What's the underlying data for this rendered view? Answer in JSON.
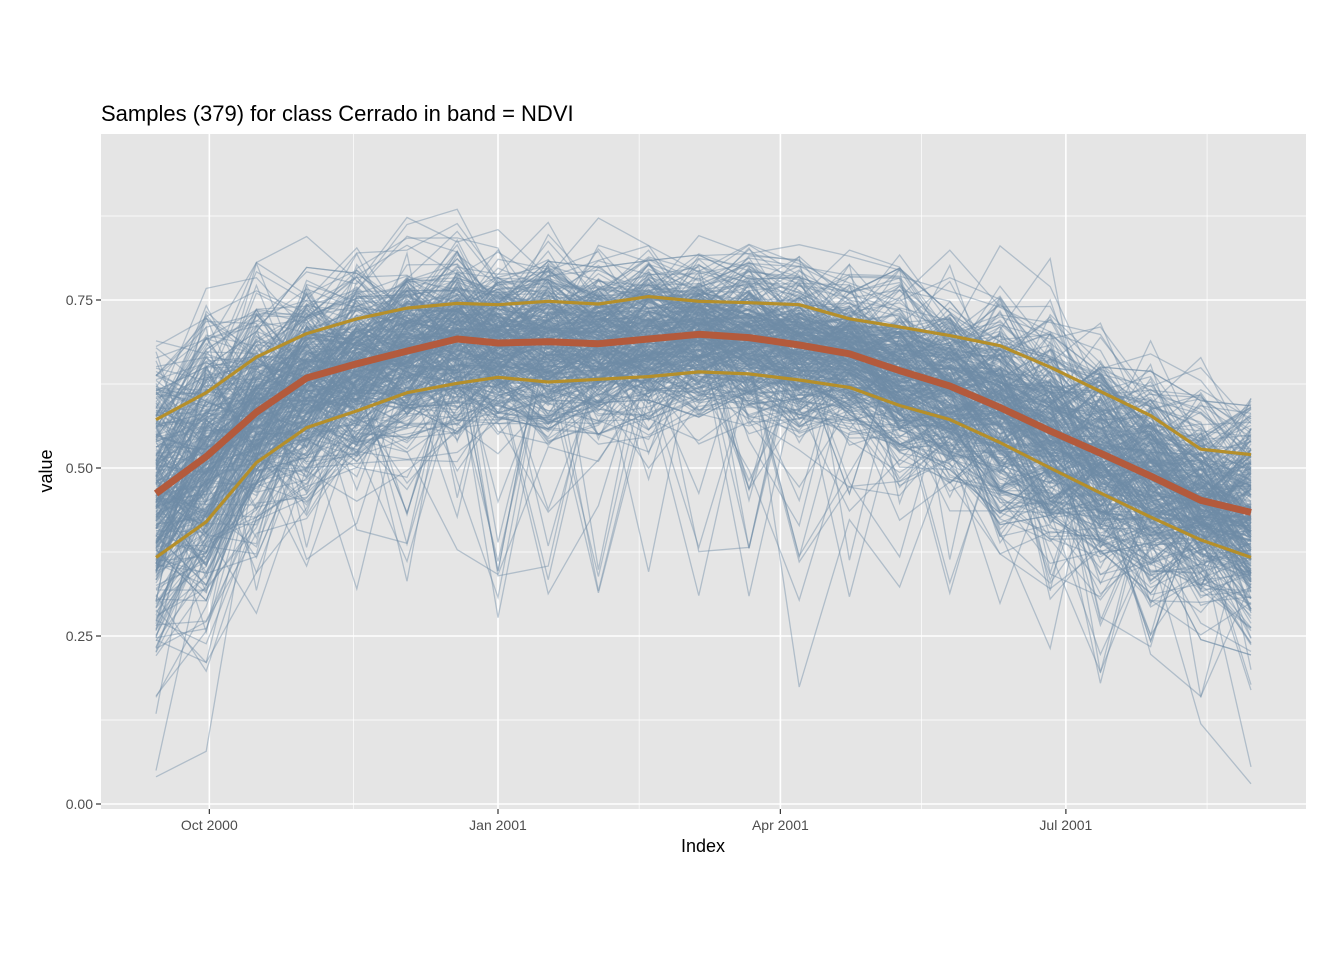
{
  "chart_data": {
    "type": "line",
    "title": "Samples (379) for class Cerrado in band = NDVI",
    "xlabel": "Index",
    "ylabel": "value",
    "x_axis_type": "date",
    "xlim": [
      "2000-09-14",
      "2001-08-29"
    ],
    "ylim": [
      0.0,
      0.95
    ],
    "x_ticks": [
      {
        "date": "2000-10-01",
        "label": "Oct 2000"
      },
      {
        "date": "2001-01-01",
        "label": "Jan 2001"
      },
      {
        "date": "2001-04-01",
        "label": "Apr 2001"
      },
      {
        "date": "2001-07-01",
        "label": "Jul 2001"
      }
    ],
    "y_ticks": [
      {
        "value": 0.0,
        "label": "0.00"
      },
      {
        "value": 0.25,
        "label": "0.25"
      },
      {
        "value": 0.5,
        "label": "0.50"
      },
      {
        "value": 0.75,
        "label": "0.75"
      }
    ],
    "grid": true,
    "sample_count": 379,
    "x": [
      "2000-09-14",
      "2000-09-30",
      "2000-10-16",
      "2000-11-01",
      "2000-11-17",
      "2000-12-03",
      "2000-12-19",
      "2001-01-01",
      "2001-01-17",
      "2001-02-02",
      "2001-02-18",
      "2001-03-06",
      "2001-03-22",
      "2001-04-07",
      "2001-04-23",
      "2001-05-09",
      "2001-05-25",
      "2001-06-10",
      "2001-06-26",
      "2001-07-12",
      "2001-07-28",
      "2001-08-13",
      "2001-08-29"
    ],
    "series": [
      {
        "role": "median",
        "color": "#b35a3c",
        "values": [
          0.462,
          0.517,
          0.583,
          0.634,
          0.655,
          0.674,
          0.692,
          0.686,
          0.688,
          0.685,
          0.692,
          0.699,
          0.694,
          0.683,
          0.67,
          0.645,
          0.622,
          0.59,
          0.555,
          0.522,
          0.488,
          0.452,
          0.434
        ]
      },
      {
        "role": "upper-quartile",
        "color": "#b58f2a",
        "values": [
          0.572,
          0.612,
          0.665,
          0.7,
          0.722,
          0.738,
          0.745,
          0.743,
          0.748,
          0.744,
          0.755,
          0.748,
          0.746,
          0.743,
          0.722,
          0.71,
          0.697,
          0.682,
          0.65,
          0.614,
          0.578,
          0.528,
          0.52
        ]
      },
      {
        "role": "lower-quartile",
        "color": "#b58f2a",
        "values": [
          0.367,
          0.42,
          0.508,
          0.56,
          0.585,
          0.612,
          0.626,
          0.635,
          0.628,
          0.632,
          0.636,
          0.643,
          0.64,
          0.631,
          0.62,
          0.593,
          0.572,
          0.538,
          0.5,
          0.463,
          0.427,
          0.393,
          0.367
        ]
      }
    ],
    "sample_line_color": "#6e8ca6",
    "panel_background": "#e5e5e5",
    "grid_color": "#ffffff"
  }
}
